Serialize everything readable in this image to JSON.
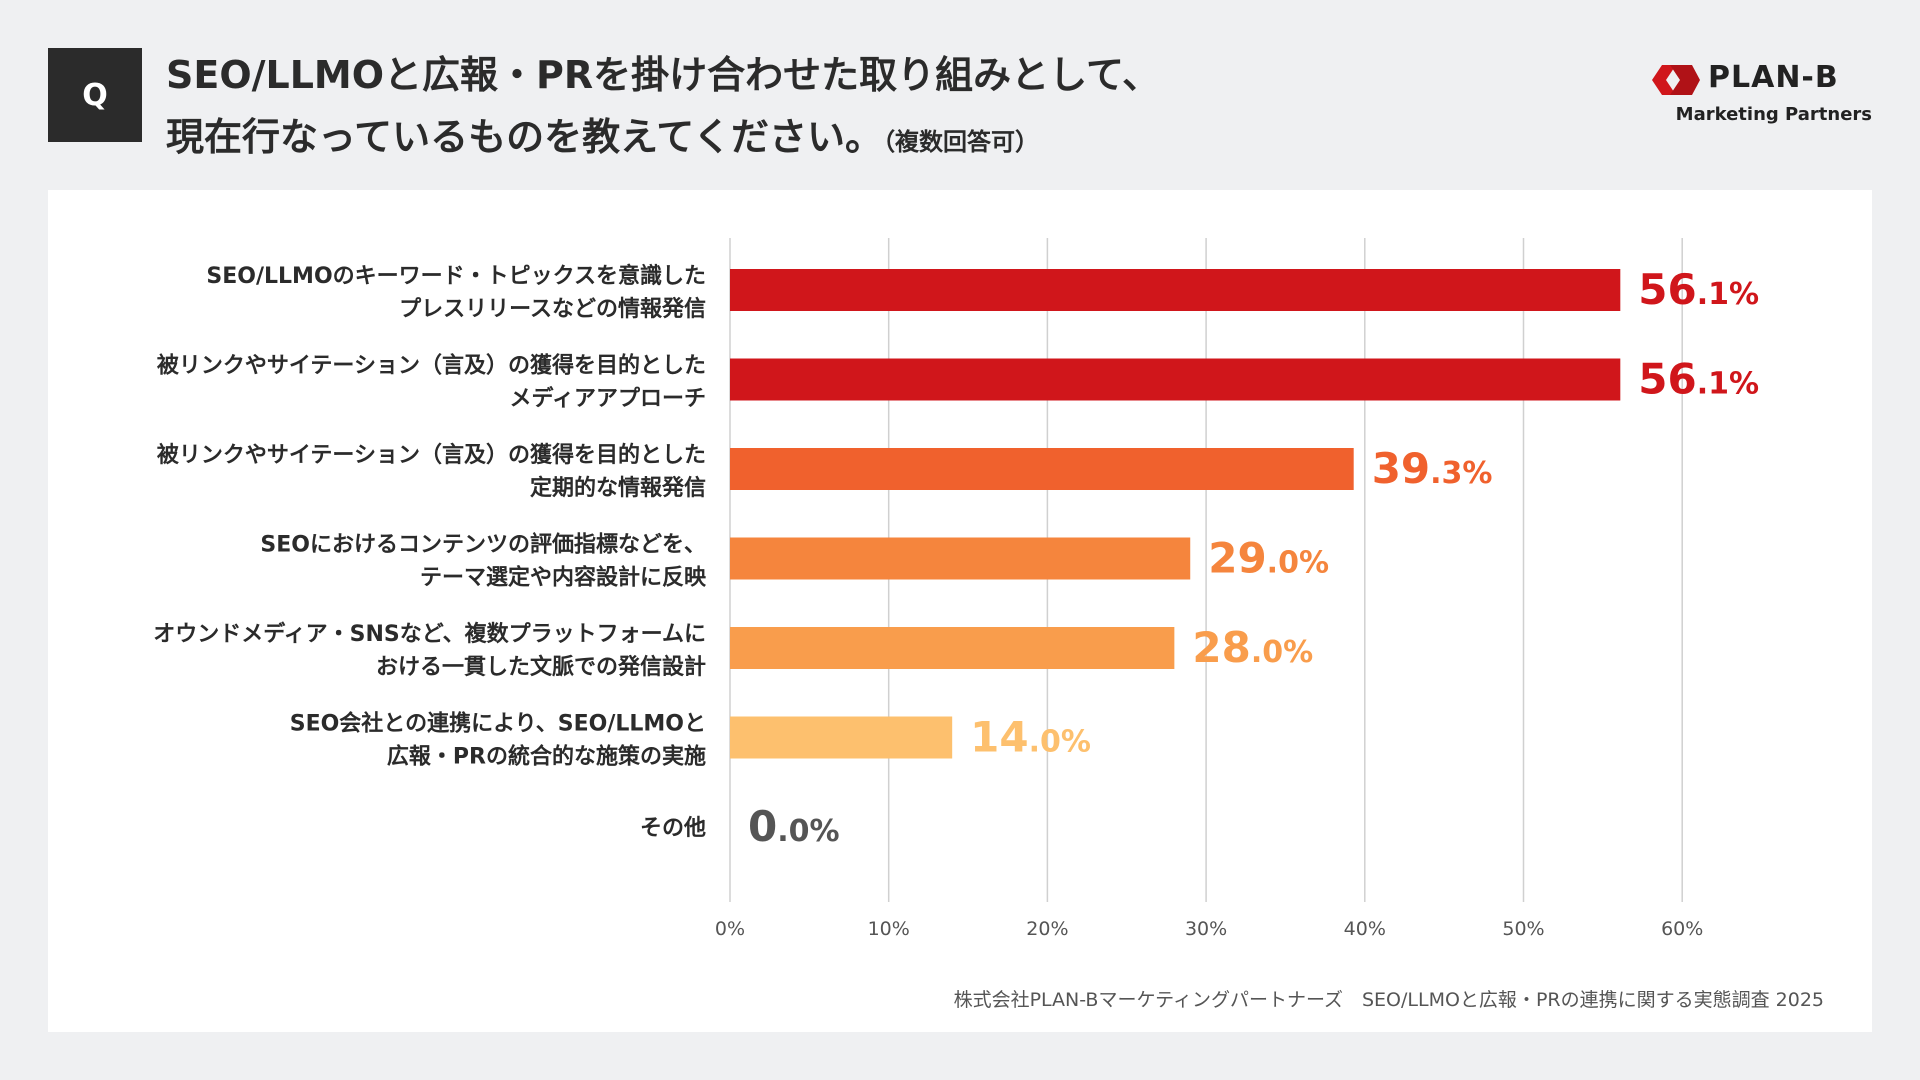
{
  "badge": "Q",
  "question": {
    "line1": "SEO/LLMOと広報・PRを掛け合わせた取り組みとして、",
    "line2": "現在行なっているものを教えてください。",
    "note": "（複数回答可）"
  },
  "logo": {
    "name": "PLAN-B",
    "sub": "Marketing Partners",
    "color": "#d0161b"
  },
  "source": "株式会社PLAN-Bマーケティングパートナーズ　SEO/LLMOと広報・PRの連携に関する実態調査 2025",
  "chart_data": {
    "type": "bar",
    "orientation": "horizontal",
    "categories": [
      [
        "SEO/LLMOのキーワード・トピックスを意識した",
        "プレスリリースなどの情報発信"
      ],
      [
        "被リンクやサイテーション（言及）の獲得を目的とした",
        "メディアアプローチ"
      ],
      [
        "被リンクやサイテーション（言及）の獲得を目的とした",
        "定期的な情報発信"
      ],
      [
        "SEOにおけるコンテンツの評価指標などを、",
        "テーマ選定や内容設計に反映"
      ],
      [
        "オウンドメディア・SNSなど、複数プラットフォームに",
        "おける一貫した文脈での発信設計"
      ],
      [
        "SEO会社との連携により、SEO/LLMOと",
        "広報・PRの統合的な施策の実施"
      ],
      [
        "その他"
      ]
    ],
    "values": [
      56.1,
      56.1,
      39.3,
      29.0,
      28.0,
      14.0,
      0.0
    ],
    "value_labels": [
      {
        "int": "56",
        "dec": ".1%"
      },
      {
        "int": "56",
        "dec": ".1%"
      },
      {
        "int": "39",
        "dec": ".3%"
      },
      {
        "int": "29",
        "dec": ".0%"
      },
      {
        "int": "28",
        "dec": ".0%"
      },
      {
        "int": "14",
        "dec": ".0%"
      },
      {
        "int": "0",
        "dec": ".0%"
      }
    ],
    "colors": [
      "#d0161b",
      "#d0161b",
      "#f0612d",
      "#f5853d",
      "#f99d4c",
      "#fdc06e",
      "#555555"
    ],
    "xlim": [
      0,
      60
    ],
    "xticks": [
      "0%",
      "10%",
      "20%",
      "30%",
      "40%",
      "50%",
      "60%"
    ],
    "grid": true
  }
}
